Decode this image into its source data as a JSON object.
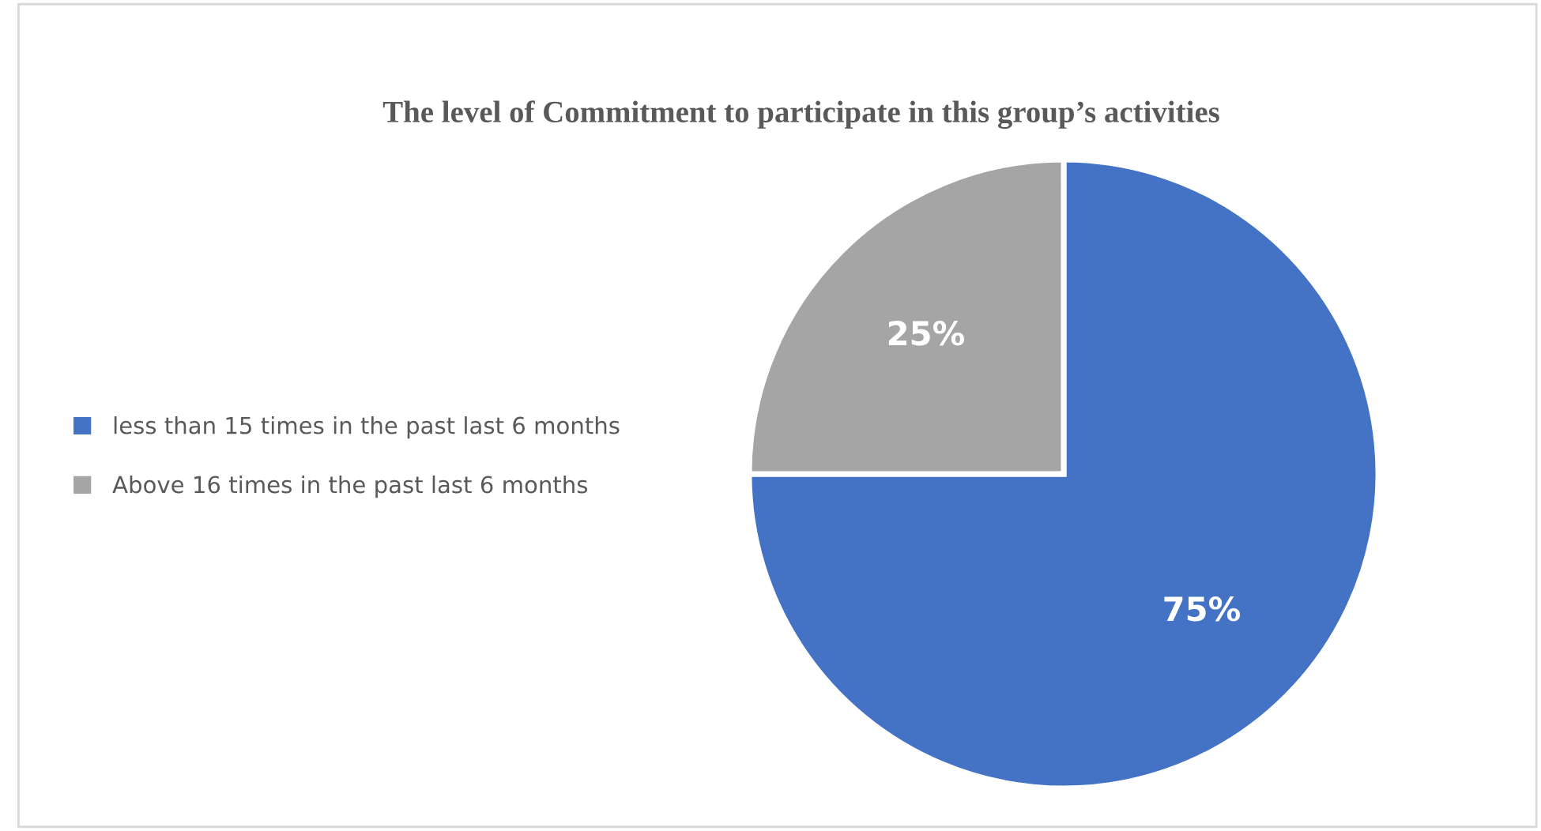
{
  "chart_data": {
    "type": "pie",
    "title": "The level of Commitment to participate in this group’s activities",
    "categories": [
      "less than 15 times in the past last 6 months",
      "Above 16 times in the past last 6 months"
    ],
    "values": [
      75,
      25
    ],
    "colors": [
      "#4472c4",
      "#a5a5a5"
    ],
    "value_labels": [
      "75%",
      "25%"
    ],
    "legend": "left"
  }
}
